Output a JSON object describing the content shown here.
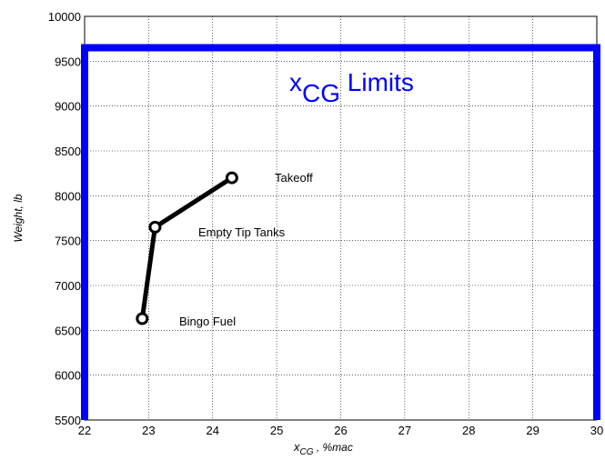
{
  "chart_data": {
    "type": "line",
    "xlim": [
      22,
      30
    ],
    "ylim": [
      5500,
      10000
    ],
    "xticks": [
      22,
      23,
      24,
      25,
      26,
      27,
      28,
      29,
      30
    ],
    "yticks": [
      5500,
      6000,
      6500,
      7000,
      7500,
      8000,
      8500,
      9000,
      9500,
      10000
    ],
    "grid": true,
    "x_label": {
      "base": "x",
      "subscript": "CG",
      "text": " , %mac"
    },
    "y_label": "Weight, lb",
    "series": [
      {
        "color": "#000000",
        "x": [
          22.9,
          23.1,
          24.3
        ],
        "values": [
          6630,
          7650,
          8200
        ],
        "markers": true
      },
      {
        "color": "#0000ff",
        "x": [
          22,
          22,
          30,
          30
        ],
        "values": [
          5500,
          9650,
          9650,
          5500
        ],
        "markers": false
      }
    ],
    "limits_label": {
      "base": "x",
      "subscript": "CG",
      "text": " Limits",
      "color": "#0000ff"
    },
    "annotations": [
      "Takeoff",
      "Empty Tip Tanks",
      "Bingo Fuel"
    ]
  }
}
